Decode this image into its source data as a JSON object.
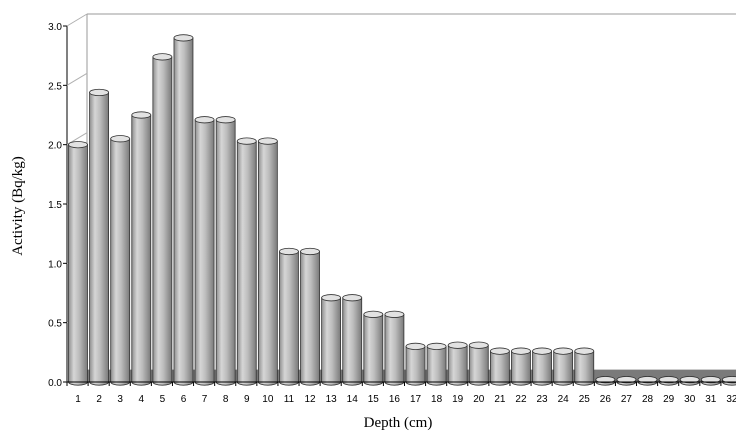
{
  "chart_data": {
    "type": "bar",
    "title": "",
    "xlabel": "Depth (cm)",
    "ylabel": "Activity (Bq/kg)",
    "ylim": [
      0,
      3.0
    ],
    "yticks": [
      "0.0",
      "0.5",
      "1.0",
      "1.5",
      "2.0",
      "2.5",
      "3.0"
    ],
    "categories": [
      "1",
      "2",
      "3",
      "4",
      "5",
      "6",
      "7",
      "8",
      "9",
      "10",
      "11",
      "12",
      "13",
      "14",
      "15",
      "16",
      "17",
      "18",
      "19",
      "20",
      "21",
      "22",
      "23",
      "24",
      "25",
      "26",
      "27",
      "28",
      "29",
      "30",
      "31",
      "32"
    ],
    "values": [
      2.0,
      2.44,
      2.05,
      2.25,
      2.74,
      2.9,
      2.21,
      2.21,
      2.03,
      2.03,
      1.1,
      1.1,
      0.71,
      0.71,
      0.57,
      0.57,
      0.3,
      0.3,
      0.31,
      0.31,
      0.26,
      0.26,
      0.26,
      0.26,
      0.26,
      0.02,
      0.02,
      0.02,
      0.02,
      0.02,
      0.02,
      0.02
    ],
    "grid": false,
    "legend": "none",
    "bar_color": "#b4b4b4",
    "style": "3d-cylinder"
  }
}
